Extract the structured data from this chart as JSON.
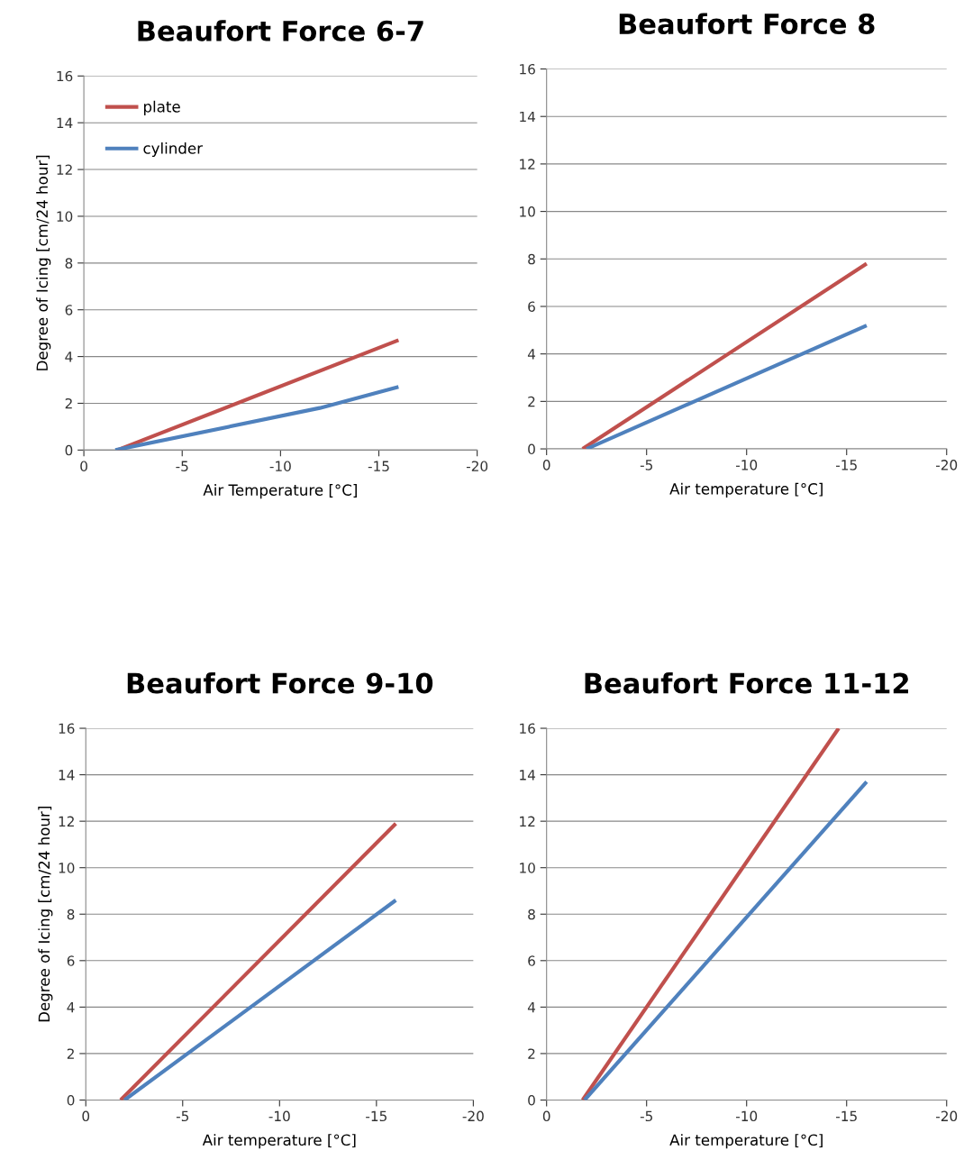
{
  "chart_data": [
    {
      "type": "line",
      "title": "Beaufort Force 6-7",
      "xlabel": "Air Temperature [°C]",
      "ylabel": "Degree of Icing [cm/24 hour]",
      "xlim": [
        0,
        -20
      ],
      "xticks": [
        0,
        -5,
        -10,
        -15,
        -20
      ],
      "ylim": [
        0,
        16
      ],
      "yticks": [
        0,
        2,
        4,
        6,
        8,
        10,
        12,
        14,
        16
      ],
      "grid": "y",
      "legend": "top left",
      "marker": "none",
      "line_style": "solid",
      "series": [
        {
          "name": "plate",
          "color": "#c0504d",
          "x": [
            -1.7,
            -16
          ],
          "values": [
            0,
            4.7
          ]
        },
        {
          "name": "cylinder",
          "color": "#4f81bd",
          "x": [
            -1.6,
            -12,
            -16
          ],
          "values": [
            0,
            1.8,
            2.7
          ]
        }
      ]
    },
    {
      "type": "line",
      "title": "Beaufort Force 8",
      "xlabel": "Air temperature [°C]",
      "xlim": [
        0,
        -20
      ],
      "xticks": [
        0,
        -5,
        -10,
        -15,
        -20
      ],
      "ylim": [
        0,
        16
      ],
      "yticks": [
        0,
        2,
        4,
        6,
        8,
        10,
        12,
        14,
        16
      ],
      "grid": "y",
      "marker": "none",
      "line_style": "solid",
      "series": [
        {
          "color": "#c0504d",
          "x": [
            -1.8,
            -16
          ],
          "values": [
            0,
            7.8
          ]
        },
        {
          "color": "#4f81bd",
          "x": [
            -2.0,
            -16
          ],
          "values": [
            0,
            5.2
          ]
        }
      ]
    },
    {
      "type": "line",
      "title": "Beaufort Force 9-10",
      "xlabel": "Air temperature [°C]",
      "ylabel": "Degree of Icing [cm/24 hour]",
      "xlim": [
        0,
        -20
      ],
      "xticks": [
        0,
        -5,
        -10,
        -15,
        -20
      ],
      "ylim": [
        0,
        16
      ],
      "yticks": [
        0,
        2,
        4,
        6,
        8,
        10,
        12,
        14,
        16
      ],
      "grid": "y",
      "marker": "none",
      "line_style": "solid",
      "series": [
        {
          "color": "#c0504d",
          "x": [
            -1.8,
            -16
          ],
          "values": [
            0,
            11.9
          ]
        },
        {
          "color": "#4f81bd",
          "x": [
            -2.0,
            -16
          ],
          "values": [
            0,
            8.6
          ]
        }
      ]
    },
    {
      "type": "line",
      "title": "Beaufort Force 11-12",
      "xlabel": "Air temperature [°C]",
      "xlim": [
        0,
        -20
      ],
      "xticks": [
        0,
        -5,
        -10,
        -15,
        -20
      ],
      "ylim": [
        0,
        16
      ],
      "yticks": [
        0,
        2,
        4,
        6,
        8,
        10,
        12,
        14,
        16
      ],
      "grid": "y",
      "marker": "none",
      "line_style": "solid",
      "series": [
        {
          "color": "#c0504d",
          "x": [
            -1.8,
            -14.6
          ],
          "values": [
            0,
            16
          ]
        },
        {
          "color": "#4f81bd",
          "x": [
            -1.9,
            -16
          ],
          "values": [
            0,
            13.7
          ]
        }
      ]
    }
  ]
}
